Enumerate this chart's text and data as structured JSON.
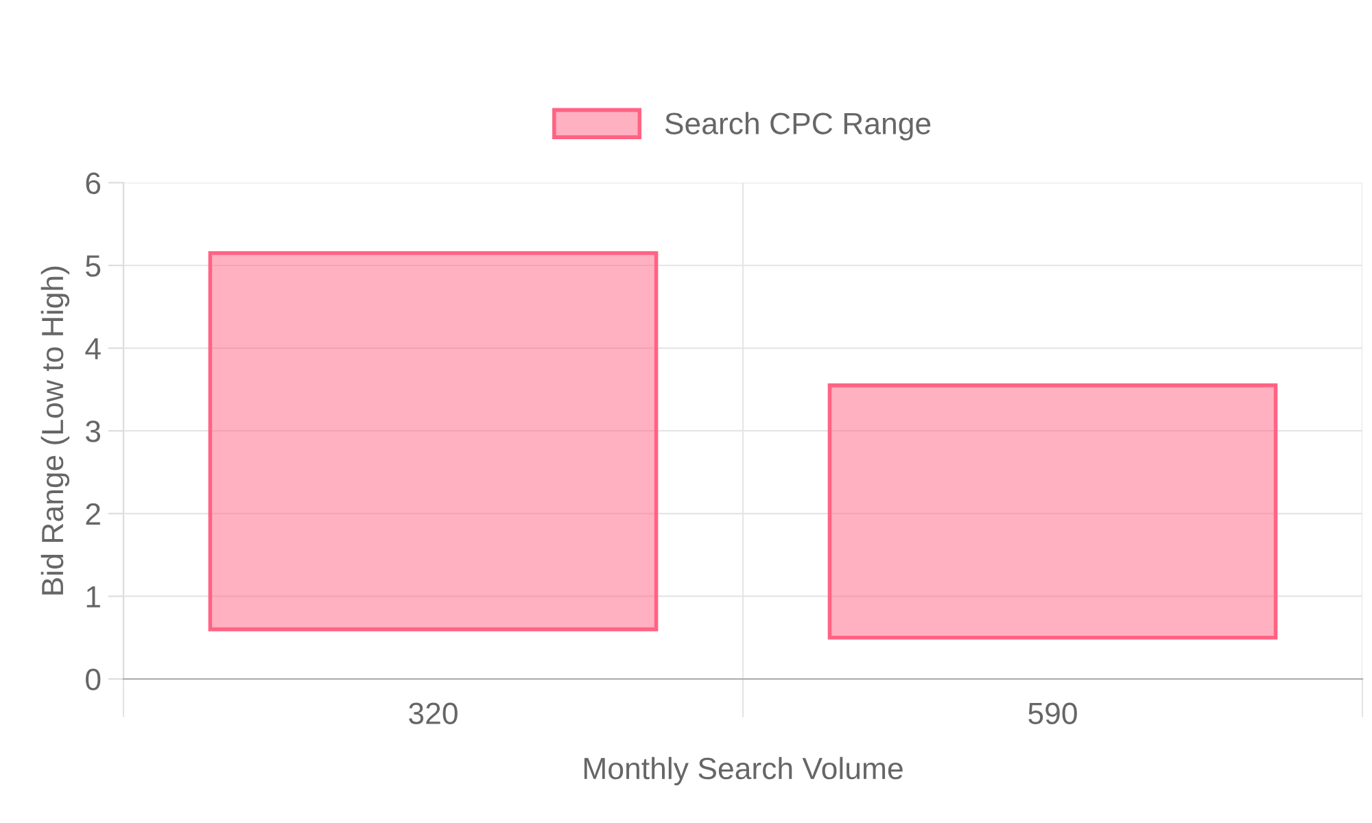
{
  "chart_data": {
    "type": "bar",
    "xlabel": "Monthly Search Volume",
    "ylabel": "Bid Range (Low to High)",
    "categories": [
      "320",
      "590"
    ],
    "series": [
      {
        "name": "Search CPC Range",
        "color": "#ff6384",
        "values": [
          4.55,
          3.05
        ],
        "base": [
          0.6,
          0.5
        ]
      }
    ],
    "ylim": [
      0,
      6
    ],
    "yticks": [
      0,
      1,
      2,
      3,
      4,
      5,
      6
    ],
    "grid": true,
    "legend": "top"
  }
}
